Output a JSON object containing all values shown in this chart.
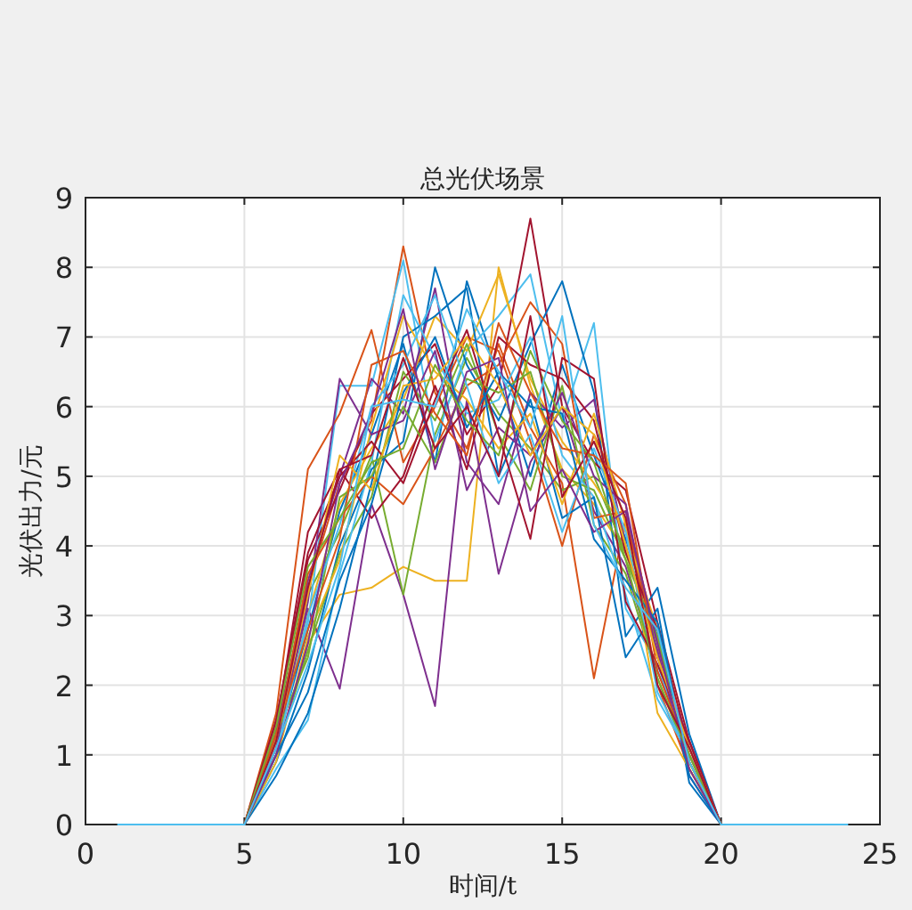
{
  "chart_data": {
    "type": "line",
    "title": "总光伏场景",
    "xlabel": "时间/t",
    "ylabel": "光伏出力/元",
    "xlim": [
      0,
      25
    ],
    "ylim": [
      0,
      9
    ],
    "xticks": [
      0,
      5,
      10,
      15,
      20,
      25
    ],
    "yticks": [
      0,
      1,
      2,
      3,
      4,
      5,
      6,
      7,
      8,
      9
    ],
    "grid": true,
    "x": [
      1,
      2,
      3,
      4,
      5,
      6,
      7,
      8,
      9,
      10,
      11,
      12,
      13,
      14,
      15,
      16,
      17,
      18,
      19,
      20,
      21,
      22,
      23,
      24
    ],
    "series": [
      {
        "color": "#0072bd",
        "values": [
          null,
          null,
          null,
          null,
          0,
          1.1,
          2.8,
          4.5,
          5.6,
          6.9,
          5.2,
          7.8,
          6.4,
          5.0,
          6.6,
          5.3,
          4.1,
          2.7,
          0.9,
          0,
          null,
          null,
          null,
          null
        ]
      },
      {
        "color": "#d95319",
        "values": [
          null,
          null,
          null,
          null,
          0,
          1.3,
          3.4,
          4.9,
          5.8,
          8.3,
          6.2,
          5.4,
          6.9,
          5.7,
          4.9,
          2.1,
          4.4,
          2.4,
          1.0,
          0,
          null,
          null,
          null,
          null
        ]
      },
      {
        "color": "#edb120",
        "values": [
          null,
          null,
          null,
          null,
          0,
          1.0,
          2.6,
          3.3,
          3.4,
          3.7,
          3.5,
          3.5,
          8.0,
          6.3,
          5.1,
          4.6,
          3.9,
          2.5,
          0.8,
          0,
          null,
          null,
          null,
          null
        ]
      },
      {
        "color": "#7e2f8e",
        "values": [
          null,
          null,
          null,
          null,
          0,
          1.2,
          3.1,
          1.95,
          4.6,
          3.3,
          1.7,
          6.1,
          3.6,
          5.2,
          6.0,
          4.5,
          3.7,
          2.2,
          1.1,
          0,
          null,
          null,
          null,
          null
        ]
      },
      {
        "color": "#77ac30",
        "values": [
          null,
          null,
          null,
          null,
          0,
          1.4,
          3.3,
          4.2,
          5.3,
          3.3,
          5.6,
          6.7,
          5.9,
          5.4,
          4.8,
          5.0,
          3.9,
          2.6,
          0.9,
          0,
          null,
          null,
          null,
          null
        ]
      },
      {
        "color": "#4dbeee",
        "values": [
          null,
          null,
          null,
          null,
          0,
          1.2,
          2.9,
          6.3,
          6.3,
          8.1,
          5.5,
          6.8,
          7.3,
          7.9,
          5.8,
          7.2,
          3.1,
          2.3,
          1.0,
          0,
          null,
          null,
          null,
          null
        ]
      },
      {
        "color": "#a2142f",
        "values": [
          null,
          null,
          null,
          null,
          0,
          1.5,
          3.8,
          4.8,
          5.9,
          6.4,
          6.9,
          5.6,
          6.3,
          8.7,
          6.0,
          5.2,
          4.8,
          2.9,
          1.2,
          0,
          null,
          null,
          null,
          null
        ]
      },
      {
        "color": "#0072bd",
        "values": [
          null,
          null,
          null,
          null,
          0,
          0.9,
          2.2,
          4.0,
          5.1,
          5.5,
          8.0,
          6.6,
          5.8,
          6.9,
          7.8,
          6.2,
          2.7,
          3.4,
          1.3,
          0,
          null,
          null,
          null,
          null
        ]
      },
      {
        "color": "#d95319",
        "values": [
          null,
          null,
          null,
          null,
          0,
          1.6,
          5.1,
          5.9,
          7.1,
          5.2,
          6.0,
          7.0,
          6.8,
          5.5,
          4.0,
          5.6,
          4.6,
          2.0,
          0.8,
          0,
          null,
          null,
          null,
          null
        ]
      },
      {
        "color": "#edb120",
        "values": [
          null,
          null,
          null,
          null,
          0,
          1.1,
          3.0,
          4.6,
          5.4,
          6.1,
          7.3,
          6.8,
          7.9,
          6.4,
          5.5,
          4.9,
          4.2,
          2.8,
          1.1,
          0,
          null,
          null,
          null,
          null
        ]
      },
      {
        "color": "#7e2f8e",
        "values": [
          null,
          null,
          null,
          null,
          0,
          1.3,
          3.5,
          5.0,
          6.4,
          5.9,
          7.7,
          5.2,
          4.6,
          6.2,
          5.7,
          6.1,
          4.0,
          2.5,
          0.7,
          0,
          null,
          null,
          null,
          null
        ]
      },
      {
        "color": "#77ac30",
        "values": [
          null,
          null,
          null,
          null,
          0,
          1.0,
          2.5,
          3.9,
          4.7,
          6.5,
          5.8,
          6.9,
          5.6,
          4.8,
          6.3,
          4.3,
          3.6,
          2.1,
          0.9,
          0,
          null,
          null,
          null,
          null
        ]
      },
      {
        "color": "#4dbeee",
        "values": [
          null,
          null,
          null,
          null,
          0,
          0.8,
          1.5,
          3.6,
          5.2,
          7.6,
          6.7,
          5.9,
          6.1,
          7.0,
          5.3,
          4.7,
          3.3,
          1.8,
          1.0,
          0,
          null,
          null,
          null,
          null
        ]
      },
      {
        "color": "#a2142f",
        "values": [
          null,
          null,
          null,
          null,
          0,
          1.4,
          4.2,
          5.1,
          4.4,
          5.0,
          6.3,
          5.1,
          7.0,
          6.6,
          6.4,
          5.8,
          3.9,
          2.8,
          1.1,
          0,
          null,
          null,
          null,
          null
        ]
      },
      {
        "color": "#0072bd",
        "values": [
          null,
          null,
          null,
          null,
          0,
          0.7,
          1.6,
          3.1,
          4.9,
          7.0,
          7.3,
          7.7,
          5.0,
          6.1,
          4.4,
          4.7,
          2.4,
          3.1,
          0.6,
          0,
          null,
          null,
          null,
          null
        ]
      },
      {
        "color": "#d95319",
        "values": [
          null,
          null,
          null,
          null,
          0,
          1.2,
          3.6,
          4.4,
          5.0,
          4.6,
          5.4,
          6.3,
          6.6,
          7.5,
          6.9,
          4.4,
          4.5,
          2.6,
          0.9,
          0,
          null,
          null,
          null,
          null
        ]
      },
      {
        "color": "#edb120",
        "values": [
          null,
          null,
          null,
          null,
          0,
          0.9,
          2.7,
          3.8,
          5.7,
          7.3,
          6.5,
          6.1,
          5.4,
          5.9,
          4.6,
          5.9,
          4.3,
          1.6,
          0.8,
          0,
          null,
          null,
          null,
          null
        ]
      },
      {
        "color": "#7e2f8e",
        "values": [
          null,
          null,
          null,
          null,
          0,
          1.1,
          3.2,
          6.4,
          5.6,
          5.8,
          6.8,
          4.8,
          5.7,
          5.3,
          6.2,
          5.0,
          4.6,
          2.4,
          1.2,
          0,
          null,
          null,
          null,
          null
        ]
      },
      {
        "color": "#77ac30",
        "values": [
          null,
          null,
          null,
          null,
          0,
          1.3,
          2.4,
          4.7,
          5.0,
          6.0,
          5.2,
          6.4,
          6.2,
          6.5,
          5.0,
          4.8,
          3.8,
          2.7,
          0.9,
          0,
          null,
          null,
          null,
          null
        ]
      },
      {
        "color": "#4dbeee",
        "values": [
          null,
          null,
          null,
          null,
          0,
          1.0,
          3.0,
          4.3,
          6.0,
          6.6,
          7.6,
          6.3,
          4.9,
          5.6,
          4.2,
          5.4,
          4.2,
          1.9,
          1.0,
          0,
          null,
          null,
          null,
          null
        ]
      },
      {
        "color": "#a2142f",
        "values": [
          null,
          null,
          null,
          null,
          0,
          1.5,
          3.9,
          5.0,
          5.5,
          4.9,
          6.1,
          7.1,
          5.6,
          4.1,
          6.7,
          6.4,
          3.2,
          2.3,
          1.2,
          0,
          null,
          null,
          null,
          null
        ]
      },
      {
        "color": "#0072bd",
        "values": [
          null,
          null,
          null,
          null,
          0,
          1.0,
          1.9,
          3.5,
          4.6,
          6.2,
          7.0,
          5.7,
          6.5,
          6.0,
          5.9,
          4.1,
          3.5,
          2.9,
          0.7,
          0,
          null,
          null,
          null,
          null
        ]
      },
      {
        "color": "#d95319",
        "values": [
          null,
          null,
          null,
          null,
          0,
          1.3,
          2.8,
          4.1,
          6.6,
          6.8,
          5.9,
          5.3,
          7.2,
          6.2,
          5.4,
          5.3,
          4.9,
          2.2,
          1.0,
          0,
          null,
          null,
          null,
          null
        ]
      },
      {
        "color": "#edb120",
        "values": [
          null,
          null,
          null,
          null,
          0,
          1.2,
          3.3,
          5.3,
          4.8,
          6.3,
          6.4,
          7.0,
          6.3,
          5.3,
          6.0,
          5.6,
          4.0,
          2.4,
          1.1,
          0,
          null,
          null,
          null,
          null
        ]
      },
      {
        "color": "#7e2f8e",
        "values": [
          null,
          null,
          null,
          null,
          0,
          1.0,
          2.6,
          4.9,
          5.9,
          7.4,
          5.1,
          6.5,
          6.7,
          4.5,
          5.1,
          4.2,
          4.5,
          2.6,
          0.8,
          0,
          null,
          null,
          null,
          null
        ]
      },
      {
        "color": "#77ac30",
        "values": [
          null,
          null,
          null,
          null,
          0,
          1.4,
          3.7,
          4.4,
          5.2,
          5.4,
          6.6,
          5.8,
          5.3,
          6.8,
          5.8,
          5.2,
          3.8,
          2.1,
          1.0,
          0,
          null,
          null,
          null,
          null
        ]
      },
      {
        "color": "#a2142f",
        "values": [
          null,
          null,
          null,
          null,
          0,
          1.2,
          3.4,
          5.1,
          5.3,
          6.7,
          5.4,
          6.0,
          5.0,
          7.3,
          4.7,
          5.5,
          4.4,
          2.0,
          1.1,
          0,
          null,
          null,
          null,
          null
        ]
      },
      {
        "color": "#4dbeee",
        "values": [
          0,
          0,
          0,
          0,
          0,
          1.1,
          2.3,
          3.7,
          6.0,
          6.1,
          6.0,
          7.4,
          6.5,
          5.7,
          7.3,
          4.3,
          3.4,
          2.8,
          0.9,
          0,
          0,
          0,
          0,
          0
        ]
      }
    ]
  }
}
